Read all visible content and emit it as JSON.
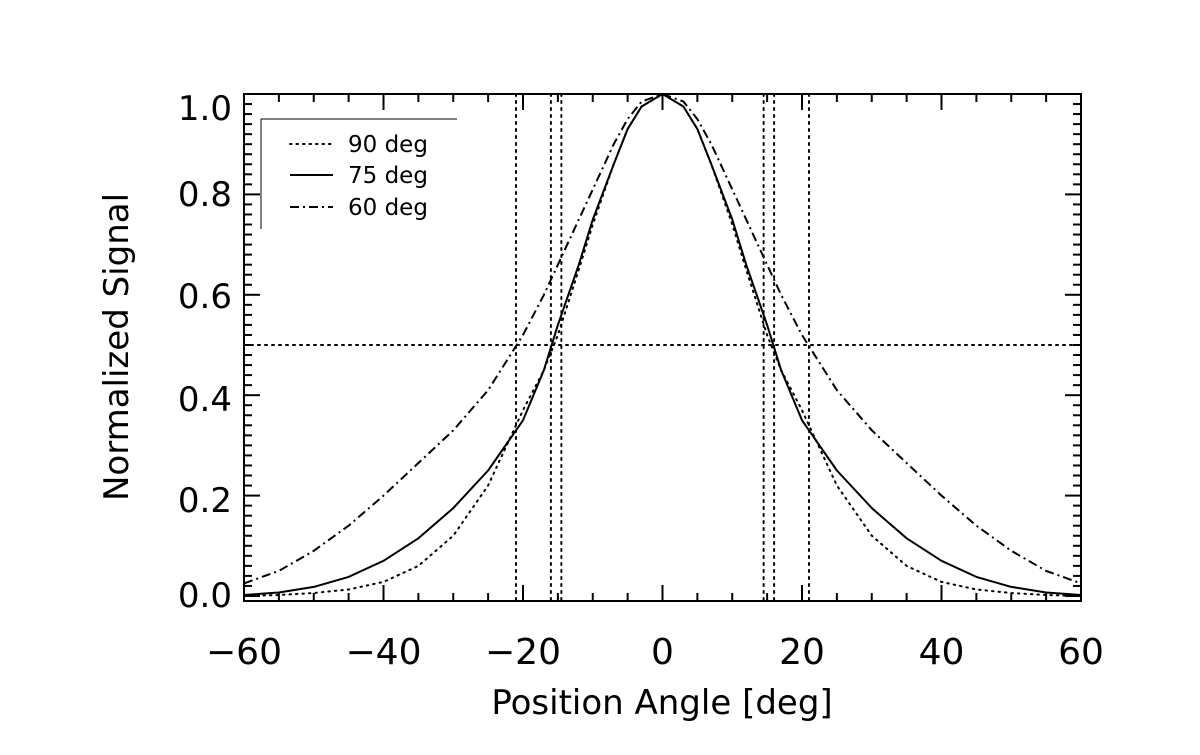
{
  "chart_data": {
    "type": "line",
    "xlabel": "Position Angle [deg]",
    "ylabel": "Normalized Signal",
    "xlim": [
      -60,
      60
    ],
    "ylim": [
      -0.01,
      1.0
    ],
    "xticks": [
      -60,
      -40,
      -20,
      0,
      20,
      40,
      60
    ],
    "xtick_labels": [
      "−60",
      "−40",
      "−20",
      "0",
      "20",
      "40",
      "60"
    ],
    "yticks": [
      0.0,
      0.2,
      0.4,
      0.6,
      0.8,
      1.0
    ],
    "ytick_labels": [
      "0.0",
      "0.2",
      "0.4",
      "0.6",
      "0.8",
      "1.0"
    ],
    "legend_position": "top-left",
    "series": [
      {
        "name": "90 deg",
        "style": "dotted",
        "x": [
          -60,
          -55,
          -50,
          -45,
          -40,
          -35,
          -30,
          -25,
          -20,
          -17,
          -15,
          -12,
          -10,
          -7,
          -5,
          -3,
          0,
          3,
          5,
          7,
          10,
          12,
          15,
          17,
          20,
          25,
          30,
          35,
          40,
          45,
          50,
          55,
          60
        ],
        "y": [
          0.0,
          0.002,
          0.006,
          0.013,
          0.028,
          0.06,
          0.12,
          0.22,
          0.37,
          0.45,
          0.52,
          0.65,
          0.74,
          0.86,
          0.93,
          0.975,
          1.0,
          0.975,
          0.93,
          0.86,
          0.74,
          0.65,
          0.52,
          0.45,
          0.37,
          0.22,
          0.12,
          0.06,
          0.028,
          0.013,
          0.006,
          0.002,
          0.0
        ]
      },
      {
        "name": "75 deg",
        "style": "solid",
        "x": [
          -60,
          -55,
          -50,
          -45,
          -40,
          -35,
          -30,
          -25,
          -20,
          -17,
          -15,
          -12,
          -10,
          -7,
          -5,
          -3,
          0,
          3,
          5,
          7,
          10,
          12,
          15,
          17,
          20,
          25,
          30,
          35,
          40,
          45,
          50,
          55,
          60
        ],
        "y": [
          0.002,
          0.007,
          0.018,
          0.038,
          0.07,
          0.115,
          0.175,
          0.25,
          0.35,
          0.45,
          0.54,
          0.66,
          0.75,
          0.86,
          0.93,
          0.975,
          1.0,
          0.975,
          0.93,
          0.86,
          0.75,
          0.66,
          0.54,
          0.45,
          0.35,
          0.25,
          0.175,
          0.115,
          0.07,
          0.038,
          0.018,
          0.007,
          0.002
        ]
      },
      {
        "name": "60 deg",
        "style": "dashdot",
        "x": [
          -60,
          -55,
          -50,
          -45,
          -40,
          -35,
          -30,
          -25,
          -20,
          -17,
          -15,
          -12,
          -10,
          -7,
          -5,
          -3,
          0,
          3,
          5,
          7,
          10,
          12,
          15,
          17,
          20,
          25,
          30,
          35,
          40,
          45,
          50,
          55,
          60
        ],
        "y": [
          0.025,
          0.05,
          0.09,
          0.14,
          0.2,
          0.265,
          0.33,
          0.41,
          0.52,
          0.6,
          0.66,
          0.75,
          0.81,
          0.9,
          0.95,
          0.985,
          1.0,
          0.985,
          0.95,
          0.9,
          0.81,
          0.75,
          0.66,
          0.6,
          0.52,
          0.41,
          0.33,
          0.265,
          0.2,
          0.14,
          0.09,
          0.05,
          0.025
        ]
      }
    ],
    "reference_lines": {
      "horizontal_y": 0.5,
      "vertical_x": [
        -21,
        -16,
        -14.5,
        14.5,
        16,
        21
      ]
    }
  }
}
